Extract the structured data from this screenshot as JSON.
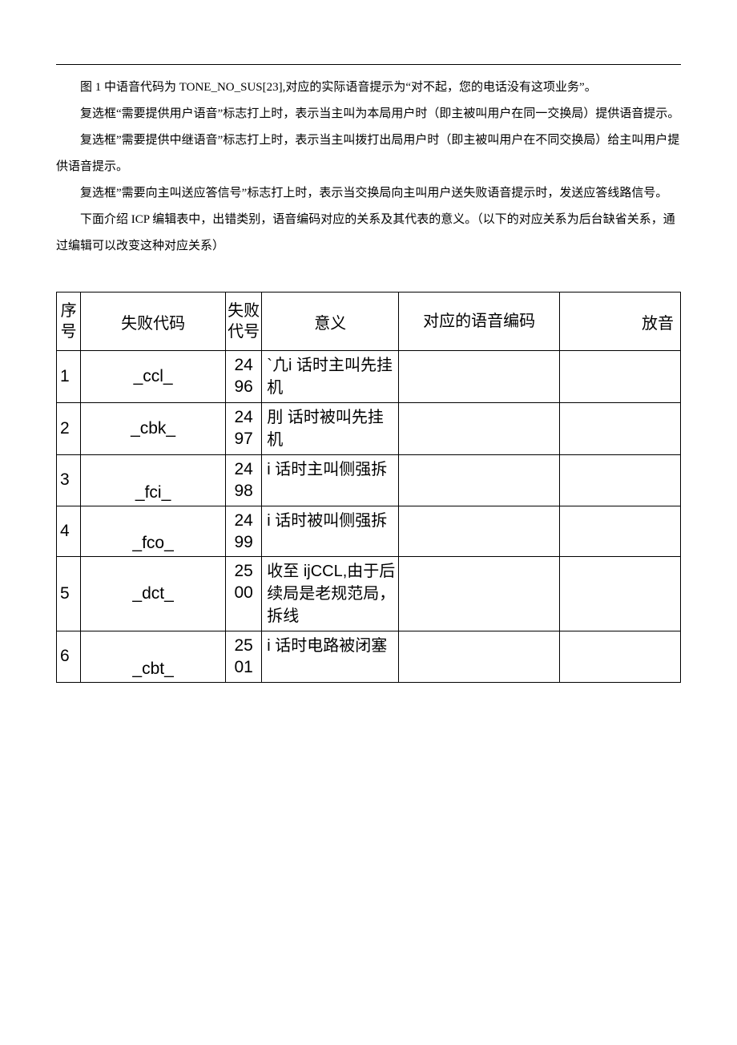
{
  "intro": {
    "p1": "图 1 中语音代码为 TONE_NO_SUS[23],对应的实际语音提示为“对不起，您的电话没有这项业务”。",
    "p2": "复选框“需要提供用户语音”标志打上时，表示当主叫为本局用户时（即主被叫用户在同一交换局）提供语音提示。",
    "p3": "复选框”需要提供中继语音”标志打上时，表示当主叫拨打出局用户时（即主被叫用户在不同交换局）给主叫用户提供语音提示。",
    "p4": "复选框”需要向主叫送应答信号”标志打上时，表示当交换局向主叫用户送失败语音提示时，发送应答线路信号。",
    "p5": "下面介绍 ICP 编辑表中，出错类别，语音编码对应的关系及其代表的意义。（以下的对应关系为后台缺省关系，通过编辑可以改变这种对应关系）"
  },
  "table": {
    "headers": {
      "seq": "序号",
      "code": "失败代码",
      "num": "失败代号",
      "meaning": "意义",
      "voice": "对应的语音编码",
      "play": "放音"
    },
    "rows": [
      {
        "seq": "1",
        "code": "_ccl_",
        "num1": "24",
        "num2": "96",
        "meaning": "`凣i 话时主叫先挂机",
        "voice": "",
        "play": ""
      },
      {
        "seq": "2",
        "code": "_cbk_",
        "num1": "24",
        "num2": "97",
        "meaning": "刖 话时被叫先挂机",
        "voice": "",
        "play": ""
      },
      {
        "seq": "3",
        "code": "_fci_",
        "num1": "24",
        "num2": "98",
        "meaning": "i 话时主叫侧强拆",
        "voice": "",
        "play": ""
      },
      {
        "seq": "4",
        "code": "_fco_",
        "num1": "24",
        "num2": "99",
        "meaning": "i 话时被叫侧强拆",
        "voice": "",
        "play": ""
      },
      {
        "seq": "5",
        "code": "_dct_",
        "num1": "25",
        "num2": "00",
        "meaning": "收至 ijCCL,由于后续局是老规范局，拆线",
        "voice": "",
        "play": ""
      },
      {
        "seq": "6",
        "code": "_cbt_",
        "num1": "25",
        "num2": "01",
        "meaning": "i 话时电路被闭塞",
        "voice": "",
        "play": ""
      }
    ]
  }
}
